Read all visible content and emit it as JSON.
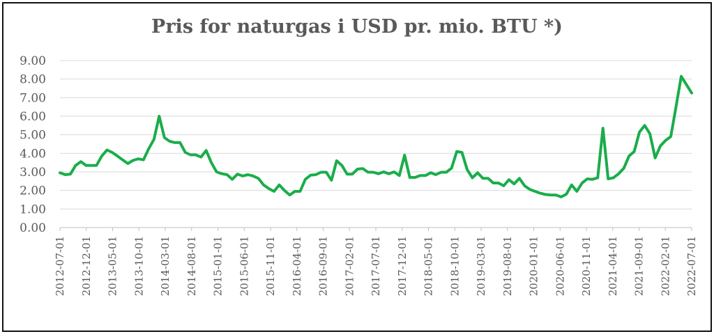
{
  "chart_data": {
    "type": "line",
    "title": "Pris for naturgas i USD pr. mio. BTU *)",
    "xlabel": "",
    "ylabel": "",
    "ylim": [
      0,
      9
    ],
    "y_ticks": [
      "0.00",
      "1.00",
      "2.00",
      "3.00",
      "4.00",
      "5.00",
      "6.00",
      "7.00",
      "8.00",
      "9.00"
    ],
    "grid": true,
    "legend": "none",
    "x_tick_labels": [
      "2012-07-01",
      "2012-12-01",
      "2013-05-01",
      "2013-10-01",
      "2014-03-01",
      "2014-08-01",
      "2015-01-01",
      "2015-06-01",
      "2015-11-01",
      "2016-04-01",
      "2016-09-01",
      "2017-02-01",
      "2017-07-01",
      "2017-12-01",
      "2018-05-01",
      "2018-10-01",
      "2019-03-01",
      "2019-08-01",
      "2020-01-01",
      "2020-06-01",
      "2020-11-01",
      "2021-04-01",
      "2021-09-01",
      "2022-02-01",
      "2022-07-01"
    ],
    "x_start": "2012-07",
    "x_end": "2022-07",
    "color": "#1aad4b",
    "series": [
      {
        "values": [
          2.95,
          2.85,
          2.88,
          3.35,
          3.55,
          3.35,
          3.35,
          3.35,
          3.85,
          4.18,
          4.05,
          3.85,
          3.65,
          3.45,
          3.62,
          3.7,
          3.65,
          4.25,
          4.75,
          6.0,
          4.85,
          4.65,
          4.58,
          4.58,
          4.05,
          3.92,
          3.92,
          3.8,
          4.15,
          3.5,
          3.0,
          2.9,
          2.85,
          2.6,
          2.88,
          2.78,
          2.85,
          2.78,
          2.65,
          2.3,
          2.1,
          1.95,
          2.3,
          2.0,
          1.75,
          1.95,
          1.95,
          2.6,
          2.82,
          2.85,
          2.98,
          2.98,
          2.55,
          3.6,
          3.35,
          2.88,
          2.88,
          3.15,
          3.18,
          2.98,
          2.98,
          2.9,
          3.0,
          2.9,
          3.0,
          2.8,
          3.9,
          2.7,
          2.7,
          2.8,
          2.8,
          2.95,
          2.85,
          2.98,
          2.98,
          3.2,
          4.1,
          4.05,
          3.12,
          2.68,
          2.95,
          2.65,
          2.65,
          2.4,
          2.4,
          2.25,
          2.58,
          2.35,
          2.65,
          2.25,
          2.05,
          1.95,
          1.85,
          1.78,
          1.75,
          1.75,
          1.65,
          1.8,
          2.3,
          1.95,
          2.4,
          2.62,
          2.6,
          2.68,
          5.35,
          2.62,
          2.68,
          2.9,
          3.2,
          3.85,
          4.1,
          5.15,
          5.5,
          5.05,
          3.75,
          4.4,
          4.7,
          4.9,
          6.5,
          8.15,
          7.7,
          7.25
        ]
      }
    ]
  }
}
